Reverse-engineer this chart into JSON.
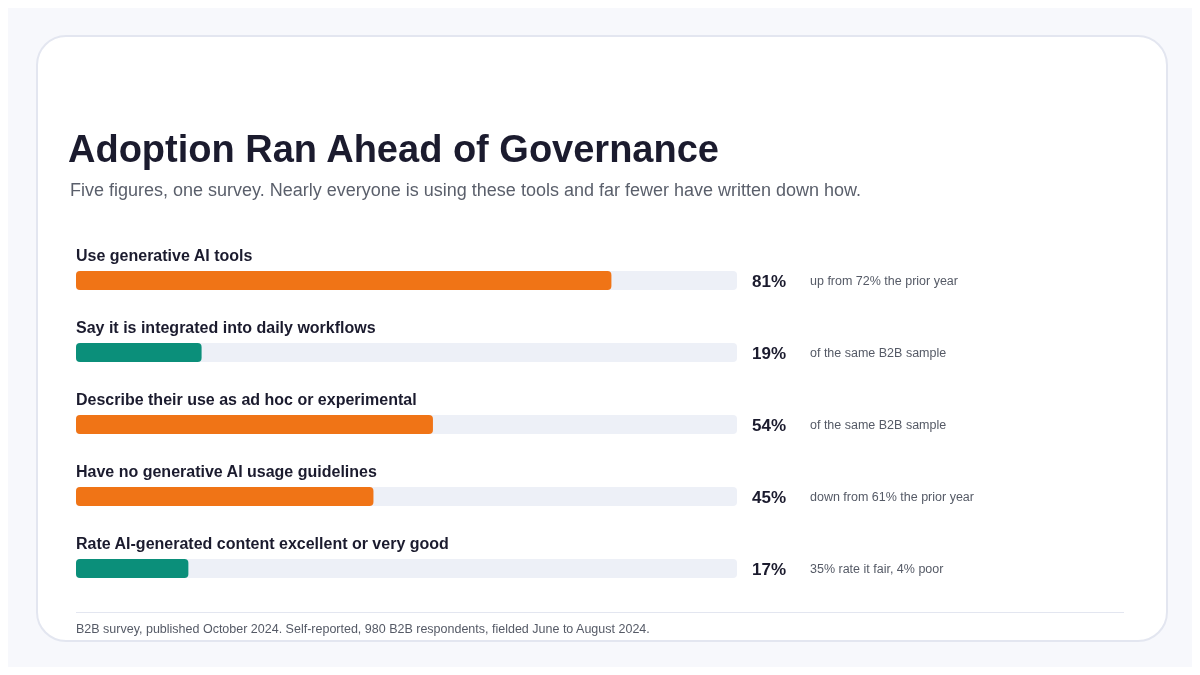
{
  "chart_data": {
    "type": "bar",
    "orientation": "horizontal",
    "title": "Adoption Ran Ahead of Governance",
    "subtitle": "Five figures, one survey. Nearly everyone is using these tools and far fewer have written down how.",
    "categories": [
      "Use generative AI tools",
      "Say it is integrated into daily workflows",
      "Describe their use as ad hoc or experimental",
      "Have no generative AI usage guidelines",
      "Rate AI-generated content excellent or very good"
    ],
    "values": [
      81,
      19,
      54,
      45,
      17
    ],
    "colors": [
      "#f07416",
      "#0b8f7a",
      "#f07416",
      "#f07416",
      "#0b8f7a"
    ],
    "value_labels": [
      "81%",
      "19%",
      "54%",
      "45%",
      "17%"
    ],
    "xlim": [
      0,
      100
    ],
    "tick_labels": false,
    "annotations": [
      "up from 72% the prior year",
      "of the same B2B sample",
      "of the same B2B sample",
      "down from 61% the prior year",
      "35% rate it fair, 4% poor",
      "B2B survey, published October 2024. Self-reported, 980 B2B respondents, fielded June to August 2024."
    ]
  }
}
